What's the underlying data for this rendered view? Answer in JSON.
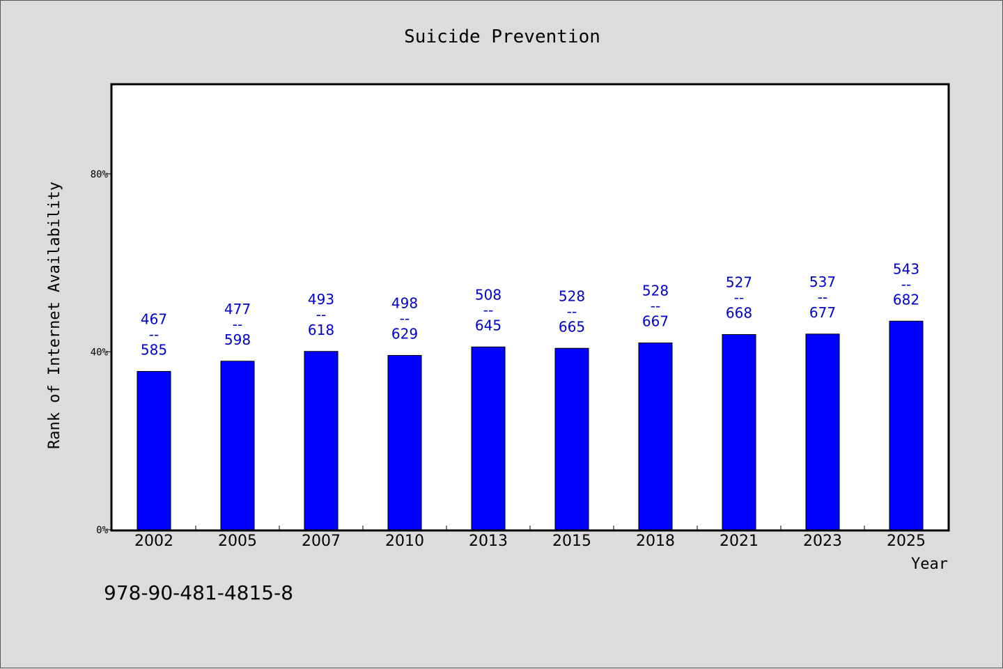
{
  "chart_data": {
    "type": "bar",
    "title": "Suicide Prevention",
    "xlabel": "Year",
    "ylabel": "Rank of Internet Availability",
    "categories": [
      "2002",
      "2005",
      "2007",
      "2010",
      "2013",
      "2015",
      "2018",
      "2021",
      "2023",
      "2025"
    ],
    "values": [
      35.6,
      37.9,
      40.1,
      39.2,
      41.1,
      40.8,
      42.0,
      43.9,
      44.0,
      46.9
    ],
    "data_labels": [
      {
        "low": "467",
        "sep": "--",
        "high": "585"
      },
      {
        "low": "477",
        "sep": "--",
        "high": "598"
      },
      {
        "low": "493",
        "sep": "--",
        "high": "618"
      },
      {
        "low": "498",
        "sep": "--",
        "high": "629"
      },
      {
        "low": "508",
        "sep": "--",
        "high": "645"
      },
      {
        "low": "528",
        "sep": "--",
        "high": "665"
      },
      {
        "low": "528",
        "sep": "--",
        "high": "667"
      },
      {
        "low": "527",
        "sep": "--",
        "high": "668"
      },
      {
        "low": "537",
        "sep": "--",
        "high": "677"
      },
      {
        "low": "543",
        "sep": "--",
        "high": "682"
      }
    ],
    "yticks": [
      {
        "value": 0,
        "label": "0%"
      },
      {
        "value": 40,
        "label": "40%"
      },
      {
        "value": 80,
        "label": "80%"
      }
    ],
    "ylim": [
      0,
      100
    ],
    "grid": false,
    "bar_color": "#0000ff",
    "label_color": "#0000cc"
  },
  "footer_text": "978-90-481-4815-8"
}
